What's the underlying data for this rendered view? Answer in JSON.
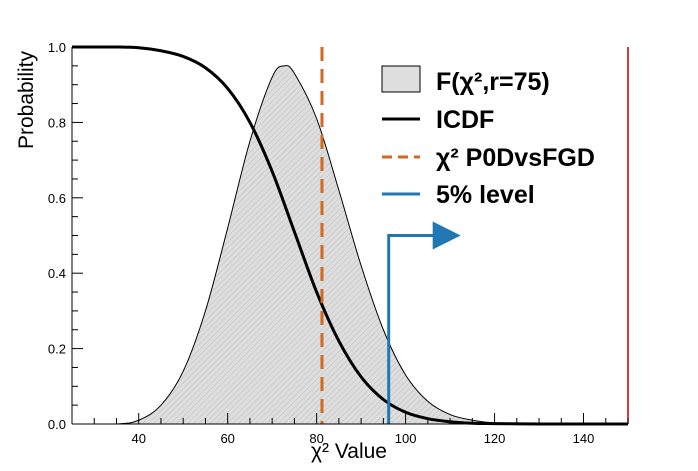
{
  "chart_data": {
    "type": "line",
    "xlabel": "χ² Value",
    "ylabel": "Probability",
    "xlim": [
      25,
      150
    ],
    "ylim": [
      0,
      1
    ],
    "x_ticks": [
      "40",
      "60",
      "80",
      "100",
      "120",
      "140"
    ],
    "y_ticks": [
      "0.0",
      "0.2",
      "0.4",
      "0.6",
      "0.8",
      "1.0"
    ],
    "grid": false,
    "legend_position": "top-right",
    "series": [
      {
        "name": "F(χ²,r=75)",
        "kind": "filled-area",
        "color": "#000000",
        "fill": "#dedede",
        "x": [
          25,
          35,
          40,
          45,
          50,
          55,
          60,
          65,
          70,
          72.7,
          75,
          80,
          85,
          90,
          95,
          100,
          105,
          110,
          115,
          120,
          130,
          150
        ],
        "y": [
          0.0,
          0.0,
          0.01,
          0.05,
          0.14,
          0.3,
          0.52,
          0.75,
          0.92,
          0.95,
          0.93,
          0.81,
          0.62,
          0.42,
          0.25,
          0.13,
          0.06,
          0.025,
          0.01,
          0.003,
          0.0,
          0.0
        ]
      },
      {
        "name": "ICDF",
        "kind": "line",
        "color": "#000000",
        "x": [
          25,
          35,
          40,
          45,
          50,
          55,
          60,
          65,
          70,
          75,
          80,
          85,
          90,
          95,
          100,
          105,
          110,
          115,
          120,
          130,
          140,
          150
        ],
        "y": [
          1.0,
          1.0,
          0.998,
          0.99,
          0.975,
          0.945,
          0.89,
          0.8,
          0.67,
          0.51,
          0.35,
          0.22,
          0.125,
          0.065,
          0.031,
          0.014,
          0.006,
          0.002,
          0.001,
          0.0,
          0.0,
          0.0
        ]
      },
      {
        "name": "χ² P0DvsFGD",
        "kind": "vertical-line",
        "color": "#d2691e",
        "x": 81.2
      },
      {
        "name": "5% level",
        "kind": "vertical-arrow",
        "color": "#1f77b4",
        "x": 96.2,
        "y_top": 0.5
      }
    ]
  }
}
